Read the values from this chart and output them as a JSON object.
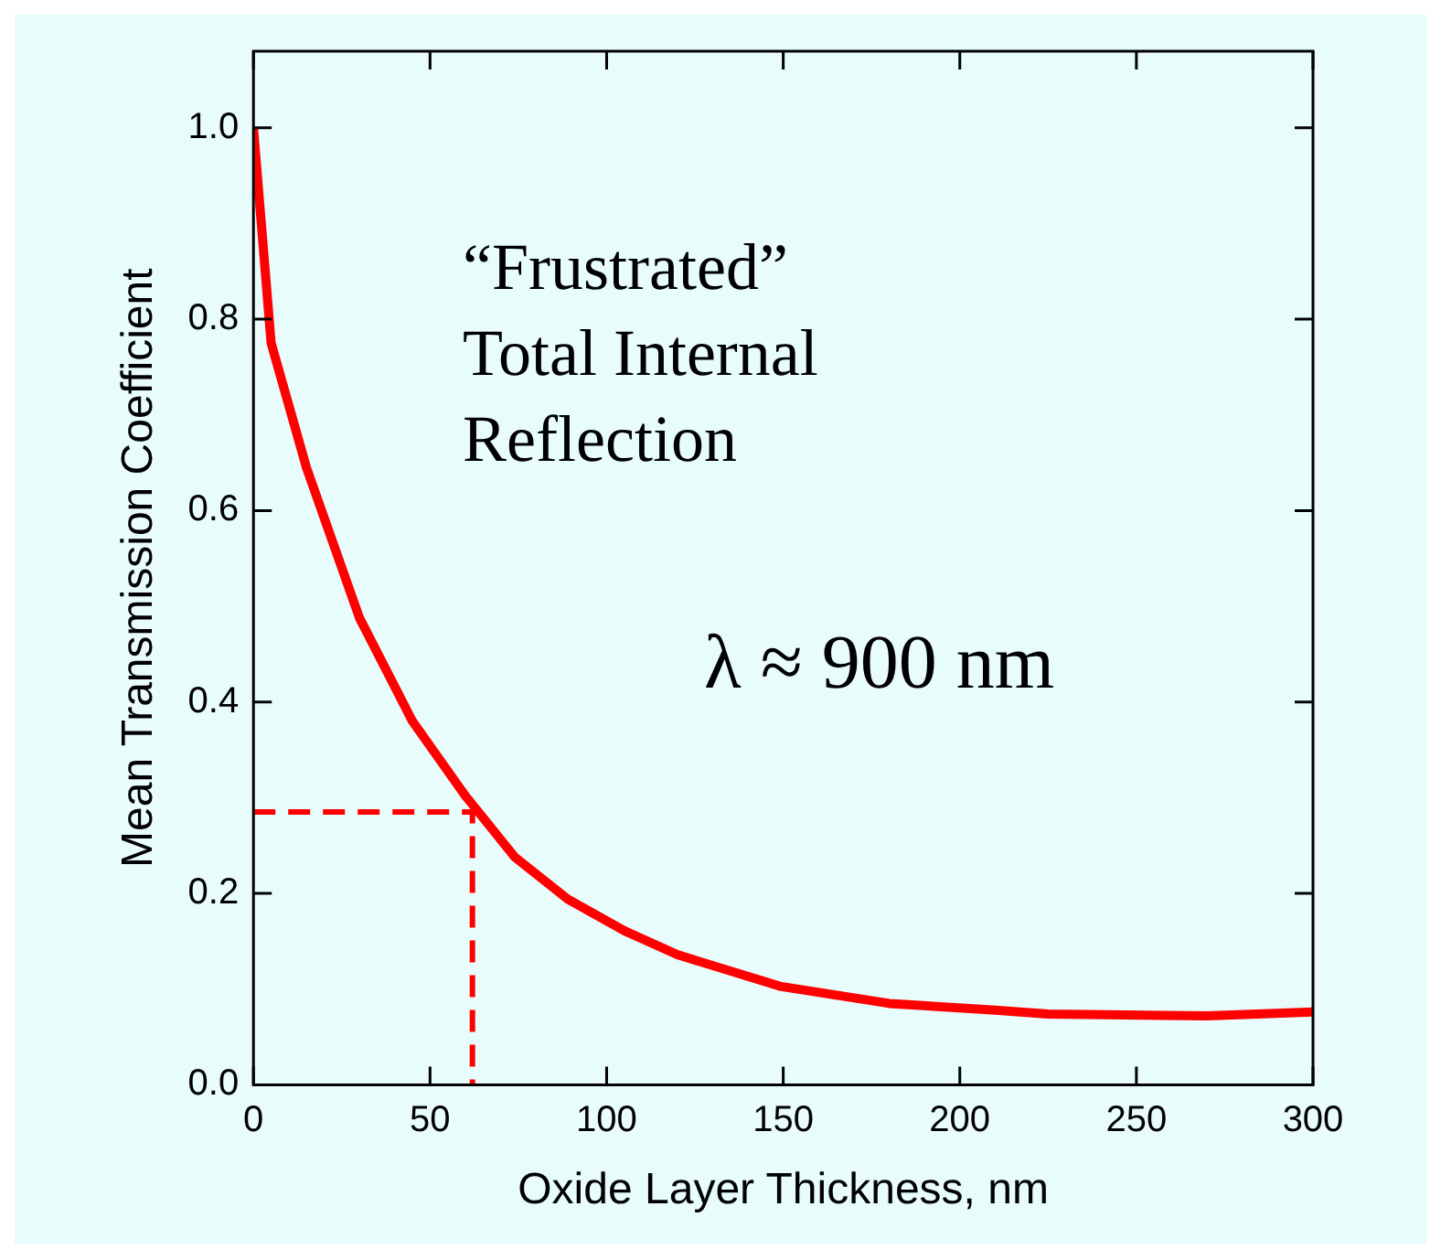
{
  "chart_data": {
    "type": "line",
    "xlabel": "Oxide Layer Thickness, nm",
    "ylabel": "Mean Transmission Coefficient",
    "annotations": [
      "“Frustrated” Total Internal Reflection",
      "λ ≈ 900 nm"
    ],
    "series": [
      {
        "color": "#ff0000",
        "x": [
          0,
          5,
          15,
          30,
          45,
          60,
          74,
          89,
          105,
          120,
          149,
          180,
          210,
          225,
          270,
          300
        ],
        "values": [
          1.0,
          0.775,
          0.645,
          0.488,
          0.38,
          0.302,
          0.238,
          0.194,
          0.161,
          0.136,
          0.103,
          0.085,
          0.078,
          0.074,
          0.072,
          0.076
        ]
      },
      {
        "type": "line",
        "line_style": "dashed",
        "color": "#ff0000",
        "x": [
          0,
          62,
          62
        ],
        "values": [
          0.285,
          0.285,
          0
        ]
      }
    ],
    "xlim": [
      0,
      300
    ],
    "xticks": [
      0,
      50,
      100,
      150,
      200,
      250,
      300
    ],
    "ylim": [
      0,
      1.08
    ],
    "yticks": [
      {
        "value": 0,
        "label": "0.0"
      },
      0.2,
      0.4,
      0.6,
      0.8,
      {
        "value": 1,
        "label": "1.0"
      }
    ],
    "grid": false,
    "legend": false,
    "marker": "none"
  }
}
